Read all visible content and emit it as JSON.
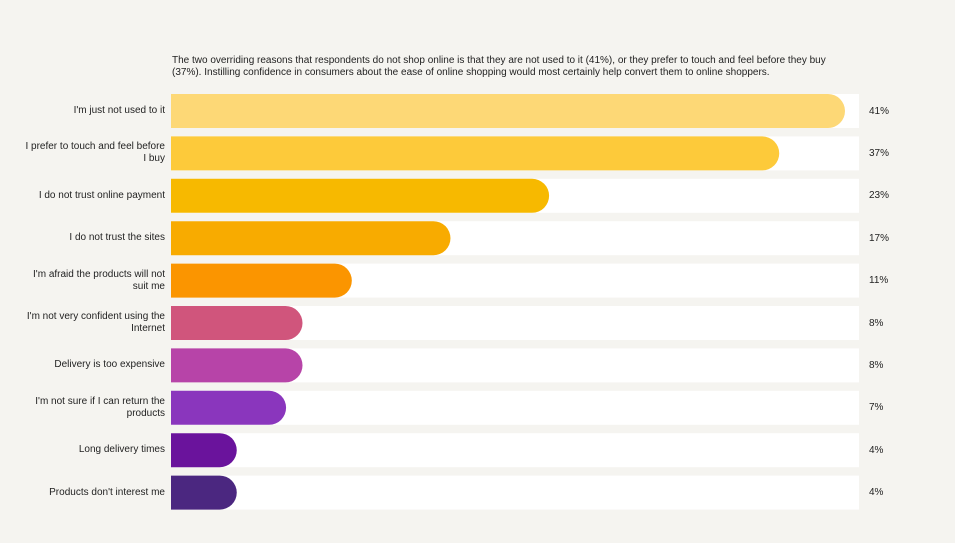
{
  "intro_text": "The two overriding reasons that respondents do not shop online is that they are not used to it (41%), or they prefer to touch and feel before they buy (37%). Instilling confidence in consumers about the ease of online shopping would most certainly help convert them to online shoppers.",
  "chart_data": {
    "type": "bar",
    "orientation": "horizontal",
    "categories": [
      "I'm just not used to it",
      "I prefer to touch and feel before I buy",
      "I do not trust online payment",
      "I do not trust the sites",
      "I'm afraid the products will not suit me",
      "I'm not very confident using the Internet",
      "Delivery is too expensive",
      "I'm not sure if I can return the products",
      "Long delivery times",
      "Products don't interest me"
    ],
    "values": [
      41,
      37,
      23,
      17,
      11,
      8,
      8,
      7,
      4,
      4
    ],
    "value_labels": [
      "41%",
      "37%",
      "23%",
      "17%",
      "11%",
      "8%",
      "8%",
      "7%",
      "4%",
      "4%"
    ],
    "unit": "%",
    "xlim": [
      0,
      42
    ],
    "colors": [
      "#fdd876",
      "#fdca3a",
      "#f7b900",
      "#f8ab00",
      "#fb9500",
      "#d0557c",
      "#b744a8",
      "#8a36bd",
      "#6a139c",
      "#4b2780"
    ],
    "track_color": "#ffffff",
    "grid": false,
    "legend": "none"
  }
}
